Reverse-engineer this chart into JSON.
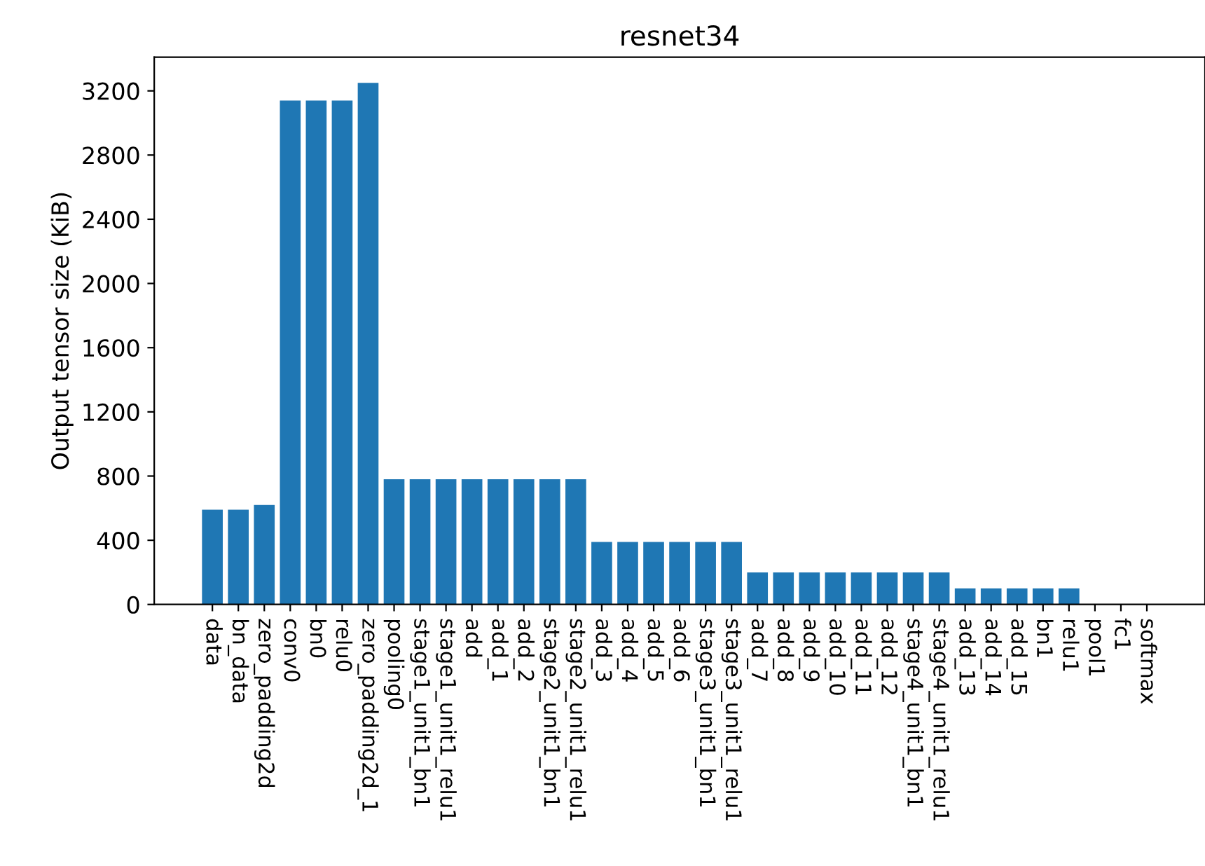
{
  "chart_data": {
    "type": "bar",
    "title": "resnet34",
    "ylabel": "Output tensor size (KiB)",
    "categories": [
      "data",
      "bn_data",
      "zero_padding2d",
      "conv0",
      "bn0",
      "relu0",
      "zero_padding2d_1",
      "pooling0",
      "stage1_unit1_bn1",
      "stage1_unit1_relu1",
      "add",
      "add_1",
      "add_2",
      "stage2_unit1_bn1",
      "stage2_unit1_relu1",
      "add_3",
      "add_4",
      "add_5",
      "add_6",
      "stage3_unit1_bn1",
      "stage3_unit1_relu1",
      "add_7",
      "add_8",
      "add_9",
      "add_10",
      "add_11",
      "add_12",
      "stage4_unit1_bn1",
      "stage4_unit1_relu1",
      "add_13",
      "add_14",
      "add_15",
      "bn1",
      "relu1",
      "pool1",
      "fc1",
      "softmax"
    ],
    "values": [
      590,
      590,
      620,
      3140,
      3140,
      3140,
      3250,
      780,
      780,
      780,
      780,
      780,
      780,
      780,
      780,
      390,
      390,
      390,
      390,
      390,
      390,
      200,
      200,
      200,
      200,
      200,
      200,
      200,
      200,
      100,
      100,
      100,
      100,
      100,
      null,
      null,
      null
    ],
    "color": "#1f77b4",
    "ylim": [
      0,
      3410
    ],
    "yticks": [
      0,
      400,
      800,
      1200,
      1600,
      2000,
      2400,
      2800,
      3200
    ],
    "grid": false
  }
}
